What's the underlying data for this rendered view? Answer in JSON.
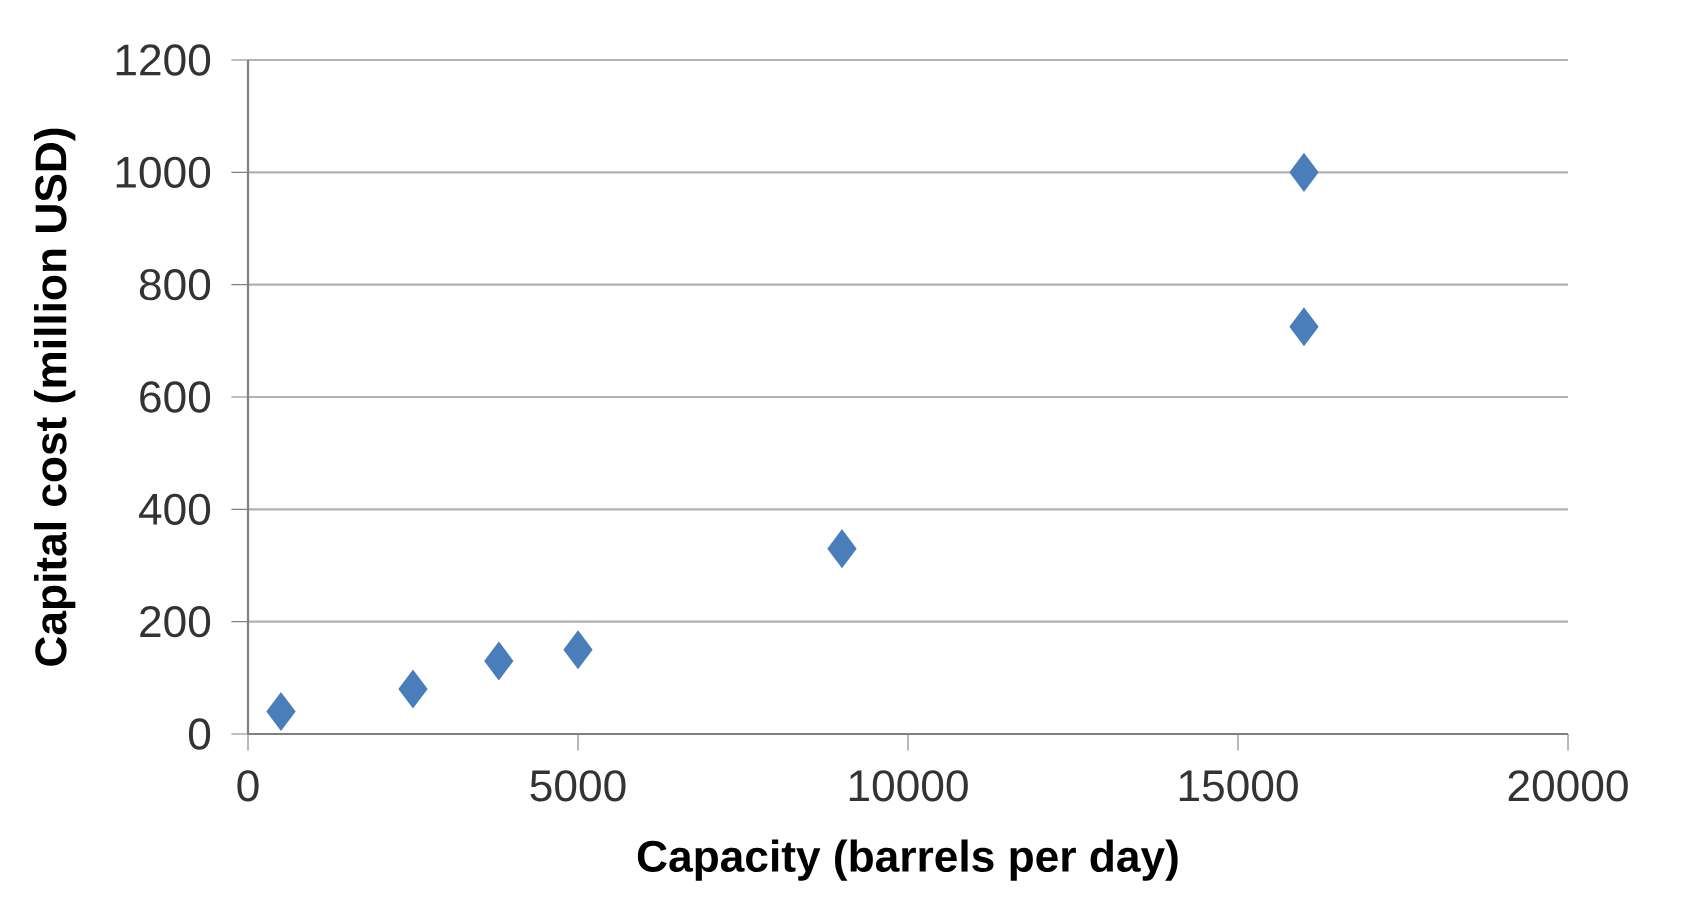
{
  "chart_data": {
    "type": "scatter",
    "xlabel": "Capacity (barrels per day)",
    "ylabel": "Capital cost (million USD)",
    "x": [
      500,
      2500,
      3800,
      5000,
      9000,
      16000,
      16000
    ],
    "values": [
      40,
      80,
      130,
      150,
      330,
      725,
      1000
    ],
    "color": "#4a7ebb",
    "marker": "diamond",
    "grid": "y",
    "xlim": [
      0,
      20000
    ],
    "xticks": [
      0,
      5000,
      10000,
      15000,
      20000
    ],
    "ylim": [
      0,
      1200
    ],
    "yticks": [
      0,
      200,
      400,
      600,
      800,
      1000,
      1200
    ]
  }
}
